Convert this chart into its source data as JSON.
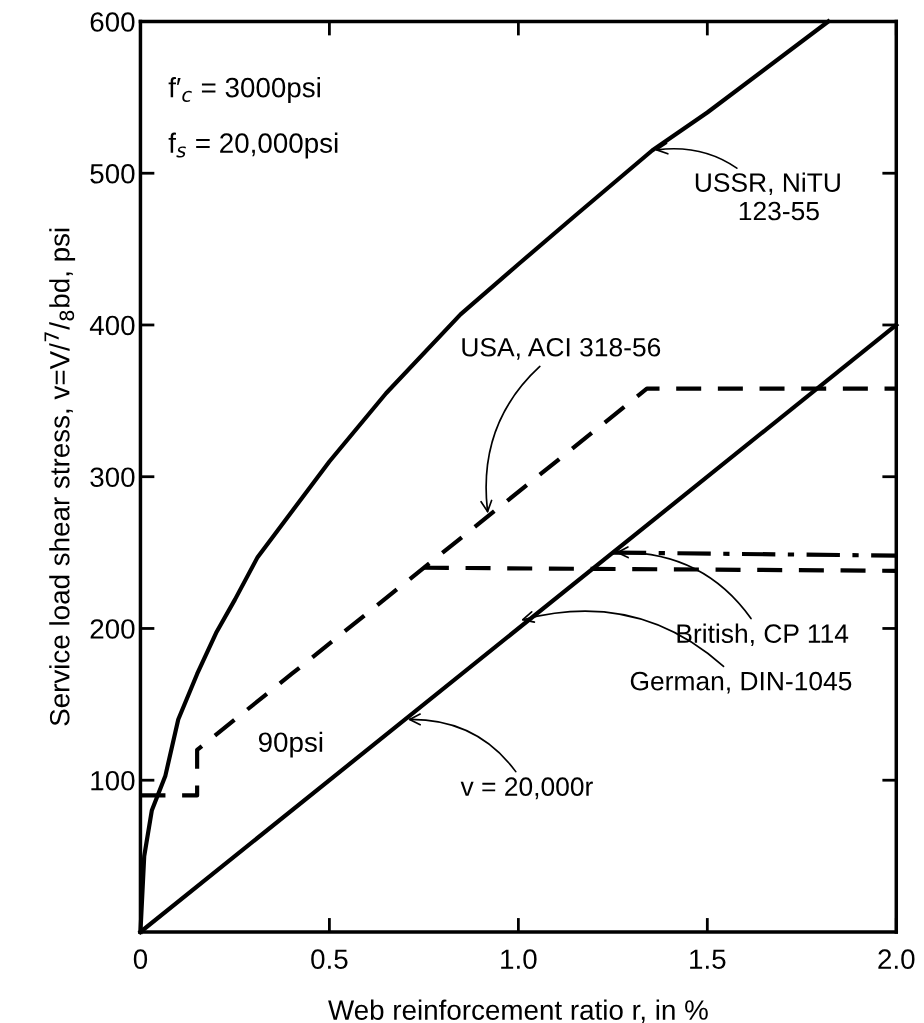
{
  "chart_data": {
    "type": "line",
    "xlabel": "Web reinforcement ratio r, in %",
    "ylabel": "Service load shear stress, v=V/$^{7}$/$_{8}$bd, psi",
    "xlim": [
      0,
      2.0
    ],
    "ylim": [
      0,
      600
    ],
    "xticks": [
      0,
      0.5,
      {
        "value": 1,
        "label": "1.0"
      },
      1.5,
      {
        "value": 2,
        "label": "2.0"
      }
    ],
    "yticks": [
      100,
      200,
      300,
      400,
      500,
      600
    ],
    "grid": false,
    "legend": false,
    "marker": "none",
    "series": [
      {
        "color": "#000000",
        "line_style": "solid",
        "x": [
          0,
          0.01,
          0.03,
          0.066,
          0.1,
          0.15,
          0.2,
          0.25,
          0.31,
          0.5,
          0.65,
          0.847,
          1.0,
          1.15,
          1.354,
          1.5,
          1.82
        ],
        "values": [
          0,
          50,
          80,
          103,
          140,
          170,
          197,
          219,
          247,
          310,
          355,
          407,
          440,
          472,
          515,
          540,
          600
        ]
      },
      {
        "color": "#000000",
        "line_style": "dashed",
        "x": [
          0,
          0.15,
          0.15,
          0.4,
          1.34,
          2.0
        ],
        "values": [
          90,
          90,
          120,
          170,
          358,
          358
        ]
      },
      {
        "color": "#000000",
        "line_style": "dashed",
        "x": [
          0.75,
          2.0
        ],
        "values": [
          240,
          238
        ]
      },
      {
        "color": "#000000",
        "line_style": "solid",
        "x": [
          0,
          2.0
        ],
        "values": [
          0,
          400
        ]
      },
      {
        "color": "#000000",
        "line_style": "dotted",
        "x": [
          1.25,
          2.0
        ],
        "values": [
          250,
          248
        ]
      }
    ],
    "annotations": [
      "f′$_{c}$ = 3000psi",
      "f$_{s}$ = 20,000psi",
      {
        "text": "USSR, NiTU\n      123-55",
        "x": 1.354,
        "y": 515
      },
      {
        "text": "USA, ACI 318-56",
        "x": 0.92,
        "y": 274
      },
      {
        "text": "British, CP 114",
        "x": 1.25,
        "y": 250
      },
      {
        "text": "German, DIN-1045",
        "x": 1.0,
        "y": 205
      },
      {
        "text": "v = 20,000r",
        "x": 0.7,
        "y": 140
      },
      "90psi"
    ]
  }
}
